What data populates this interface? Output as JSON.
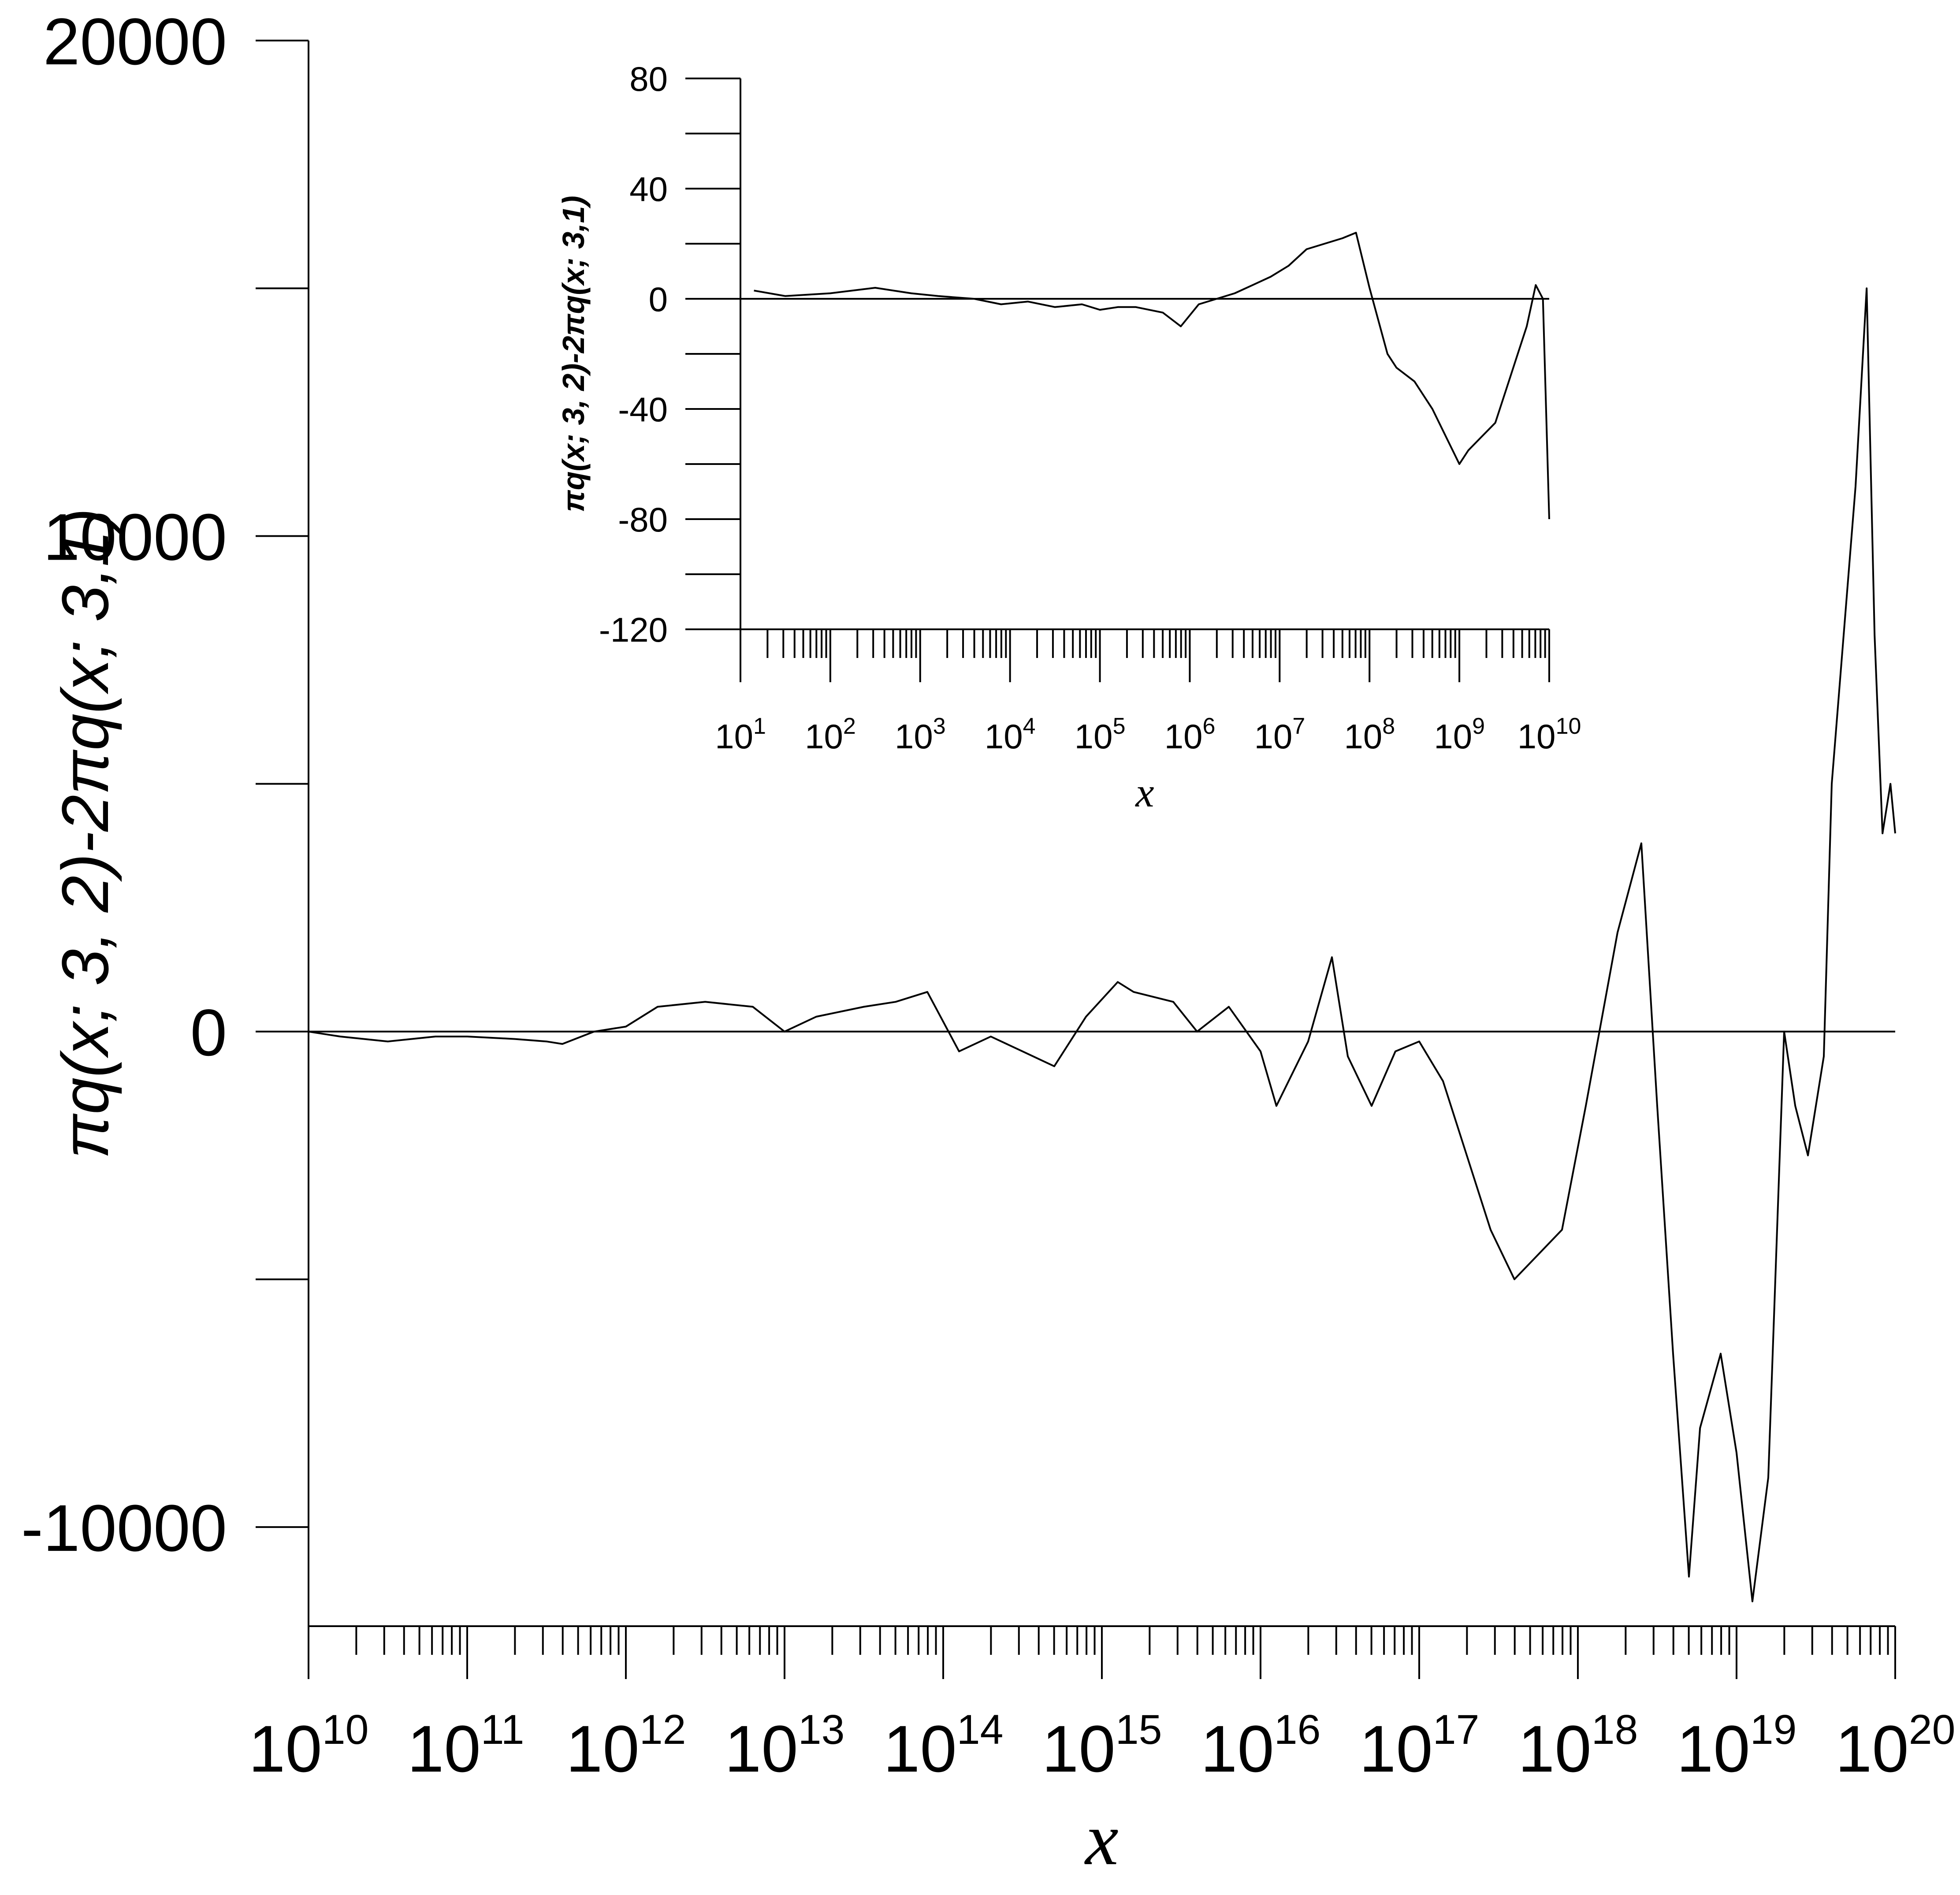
{
  "chart_data": [
    {
      "id": "main",
      "type": "line",
      "title": "",
      "xlabel": "x",
      "ylabel": "πq(x; 3, 2)-2πq(x; 3,1)",
      "xscale": "log10",
      "xlim": [
        10000000000.0,
        1e+20
      ],
      "ylim": [
        -12000,
        20000
      ],
      "grid": false,
      "yticks": [
        -10000,
        0,
        10000,
        20000
      ],
      "ytick_labels": [
        "-10000",
        "0",
        "10000",
        "20000"
      ],
      "yminor_ticks": [
        -5000,
        5000,
        15000
      ],
      "xtick_exponents": [
        10,
        11,
        12,
        13,
        14,
        15,
        16,
        17,
        18,
        19,
        20
      ],
      "xtick_base": "10",
      "reference_line_y": 0,
      "series": [
        {
          "log10_x": [
            10.0,
            10.2,
            10.5,
            10.8,
            11.0,
            11.3,
            11.5,
            11.6,
            11.8,
            12.0,
            12.2,
            12.5,
            12.8,
            13.0,
            13.2,
            13.5,
            13.7,
            13.9,
            14.1,
            14.3,
            14.5,
            14.7,
            14.9,
            15.1,
            15.2,
            15.45,
            15.6,
            15.8,
            16.0,
            16.1,
            16.3,
            16.45,
            16.55,
            16.7,
            16.85,
            17.0,
            17.15,
            17.3,
            17.45,
            17.6,
            17.75,
            17.9,
            18.05,
            18.25,
            18.4,
            18.5,
            18.6,
            18.7,
            18.77,
            18.9,
            19.0,
            19.1,
            19.2,
            19.3,
            19.37,
            19.45,
            19.55,
            19.6,
            19.7,
            19.75,
            19.82,
            19.87,
            19.92,
            19.97,
            20.0
          ],
          "y": [
            0,
            -100,
            -200,
            -100,
            -100,
            -150,
            -200,
            -250,
            0,
            100,
            500,
            600,
            500,
            0,
            300,
            500,
            600,
            800,
            -400,
            -100,
            -400,
            -700,
            300,
            1000,
            800,
            600,
            0,
            500,
            -400,
            -1500,
            -200,
            1500,
            -500,
            -1500,
            -400,
            -200,
            -1000,
            -2500,
            -4000,
            -5000,
            -4500,
            -4000,
            -1500,
            2000,
            3800,
            -1500,
            -6500,
            -11000,
            -8000,
            -6500,
            -8500,
            -11500,
            -9000,
            0,
            -1500,
            -2500,
            -500,
            5000,
            9000,
            11000,
            15000,
            8000,
            4000,
            5000,
            4000
          ]
        }
      ]
    },
    {
      "id": "inset",
      "type": "line",
      "title": "",
      "xlabel": "x",
      "ylabel": "πq(x; 3, 2)-2πq(x; 3,1)",
      "xscale": "log10",
      "xlim": [
        10,
        10000000000.0
      ],
      "ylim": [
        -120,
        80
      ],
      "grid": false,
      "yticks": [
        -120,
        -80,
        -40,
        0,
        40,
        80
      ],
      "ytick_labels": [
        "-120",
        "-80",
        "-40",
        "0",
        "40",
        "80"
      ],
      "yminor_ticks": [
        -100,
        -60,
        -20,
        20,
        60
      ],
      "xtick_exponents": [
        1,
        2,
        3,
        4,
        5,
        6,
        7,
        8,
        9,
        10
      ],
      "xtick_base": "10",
      "reference_line_y": 0,
      "series": [
        {
          "log10_x": [
            1.15,
            1.5,
            2.0,
            2.5,
            2.9,
            3.2,
            3.6,
            3.9,
            4.2,
            4.5,
            4.8,
            5.0,
            5.2,
            5.4,
            5.7,
            5.9,
            6.1,
            6.3,
            6.5,
            6.7,
            6.9,
            7.1,
            7.3,
            7.5,
            7.7,
            7.85,
            8.0,
            8.2,
            8.3,
            8.5,
            8.7,
            8.85,
            9.0,
            9.1,
            9.25,
            9.4,
            9.55,
            9.65,
            9.75,
            9.85,
            9.93,
            10.0
          ],
          "y": [
            3,
            1,
            2,
            4,
            2,
            1,
            0,
            -2,
            -1,
            -3,
            -2,
            -4,
            -3,
            -3,
            -5,
            -10,
            -2,
            0,
            2,
            5,
            8,
            12,
            18,
            20,
            22,
            24,
            4,
            -20,
            -25,
            -30,
            -40,
            -50,
            -60,
            -55,
            -50,
            -45,
            -30,
            -20,
            -10,
            5,
            0,
            -80
          ]
        }
      ]
    }
  ]
}
